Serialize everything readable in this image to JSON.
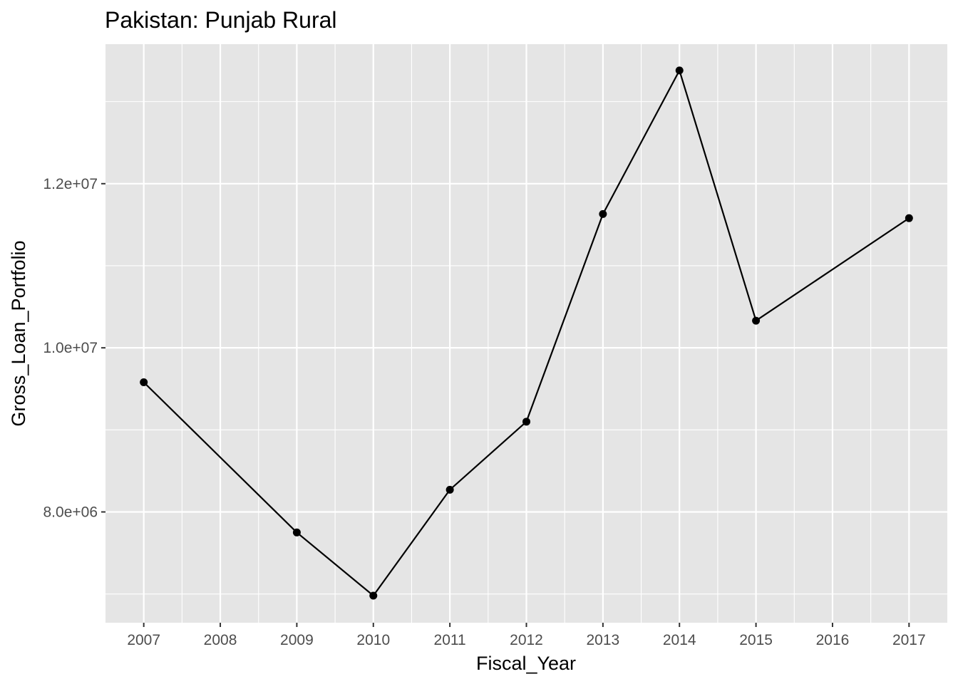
{
  "chart_data": {
    "type": "line",
    "title": "Pakistan:  Punjab Rural",
    "xlabel": "Fiscal_Year",
    "ylabel": "Gross_Loan_Portfolio",
    "x_ticks": [
      "2007",
      "2008",
      "2009",
      "2010",
      "2011",
      "2012",
      "2013",
      "2014",
      "2015",
      "2016",
      "2017"
    ],
    "y_ticks": [
      "8.0e+06",
      "1.0e+07",
      "1.2e+07"
    ],
    "y_tick_values": [
      8000000,
      10000000,
      12000000
    ],
    "xlim": [
      2006.5,
      2017.5
    ],
    "ylim": [
      6650000,
      13700000
    ],
    "grid": true,
    "series": [
      {
        "x": [
          2007,
          2009,
          2010,
          2011,
          2012,
          2013,
          2014,
          2015,
          2017
        ],
        "values": [
          9580000,
          7750000,
          6980000,
          8270000,
          9100000,
          11630000,
          13380000,
          10330000,
          11580000
        ]
      }
    ],
    "colors": {
      "panel": "#e5e5e5",
      "grid": "#ffffff",
      "line": "#000000",
      "tick": "#333333"
    }
  }
}
